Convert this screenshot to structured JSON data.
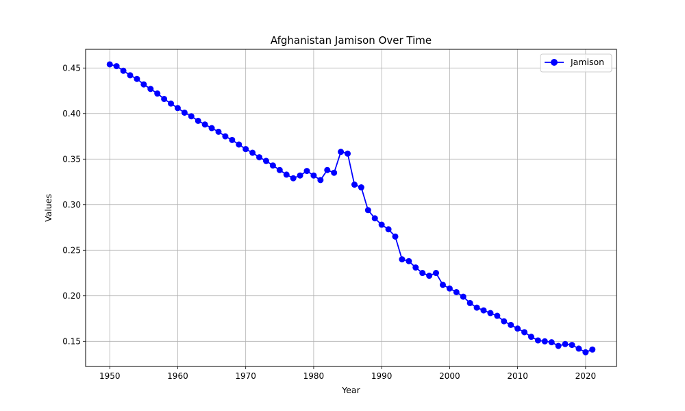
{
  "chart_data": {
    "type": "line",
    "title": "Afghanistan Jamison Over Time",
    "xlabel": "Year",
    "ylabel": "Values",
    "xlim": [
      1946.45,
      2024.55
    ],
    "ylim": [
      0.1224,
      0.4705
    ],
    "x_ticks": [
      1950,
      1960,
      1970,
      1980,
      1990,
      2000,
      2010,
      2020
    ],
    "y_ticks": [
      0.15,
      0.2,
      0.25,
      0.3,
      0.35,
      0.4,
      0.45
    ],
    "y_tick_labels": [
      "0.15",
      "0.20",
      "0.25",
      "0.30",
      "0.35",
      "0.40",
      "0.45"
    ],
    "grid": true,
    "legend_position": "top-right",
    "series": [
      {
        "name": "Jamison",
        "color": "#0000ff",
        "marker": "circle",
        "x": [
          1950,
          1951,
          1952,
          1953,
          1954,
          1955,
          1956,
          1957,
          1958,
          1959,
          1960,
          1961,
          1962,
          1963,
          1964,
          1965,
          1966,
          1967,
          1968,
          1969,
          1970,
          1971,
          1972,
          1973,
          1974,
          1975,
          1976,
          1977,
          1978,
          1979,
          1980,
          1981,
          1982,
          1983,
          1984,
          1985,
          1986,
          1987,
          1988,
          1989,
          1990,
          1991,
          1992,
          1993,
          1994,
          1995,
          1996,
          1997,
          1998,
          1999,
          2000,
          2001,
          2002,
          2003,
          2004,
          2005,
          2006,
          2007,
          2008,
          2009,
          2010,
          2011,
          2012,
          2013,
          2014,
          2015,
          2016,
          2017,
          2018,
          2019,
          2020,
          2021
        ],
        "values": [
          0.454,
          0.452,
          0.447,
          0.442,
          0.438,
          0.432,
          0.427,
          0.422,
          0.416,
          0.411,
          0.406,
          0.401,
          0.397,
          0.392,
          0.388,
          0.384,
          0.38,
          0.375,
          0.371,
          0.366,
          0.361,
          0.357,
          0.352,
          0.348,
          0.343,
          0.338,
          0.333,
          0.329,
          0.332,
          0.337,
          0.332,
          0.327,
          0.338,
          0.335,
          0.358,
          0.356,
          0.322,
          0.319,
          0.294,
          0.285,
          0.278,
          0.273,
          0.265,
          0.24,
          0.238,
          0.231,
          0.225,
          0.222,
          0.225,
          0.212,
          0.208,
          0.204,
          0.199,
          0.192,
          0.187,
          0.184,
          0.181,
          0.178,
          0.172,
          0.168,
          0.164,
          0.16,
          0.155,
          0.151,
          0.15,
          0.149,
          0.145,
          0.147,
          0.146,
          0.142,
          0.138,
          0.141
        ]
      }
    ]
  }
}
